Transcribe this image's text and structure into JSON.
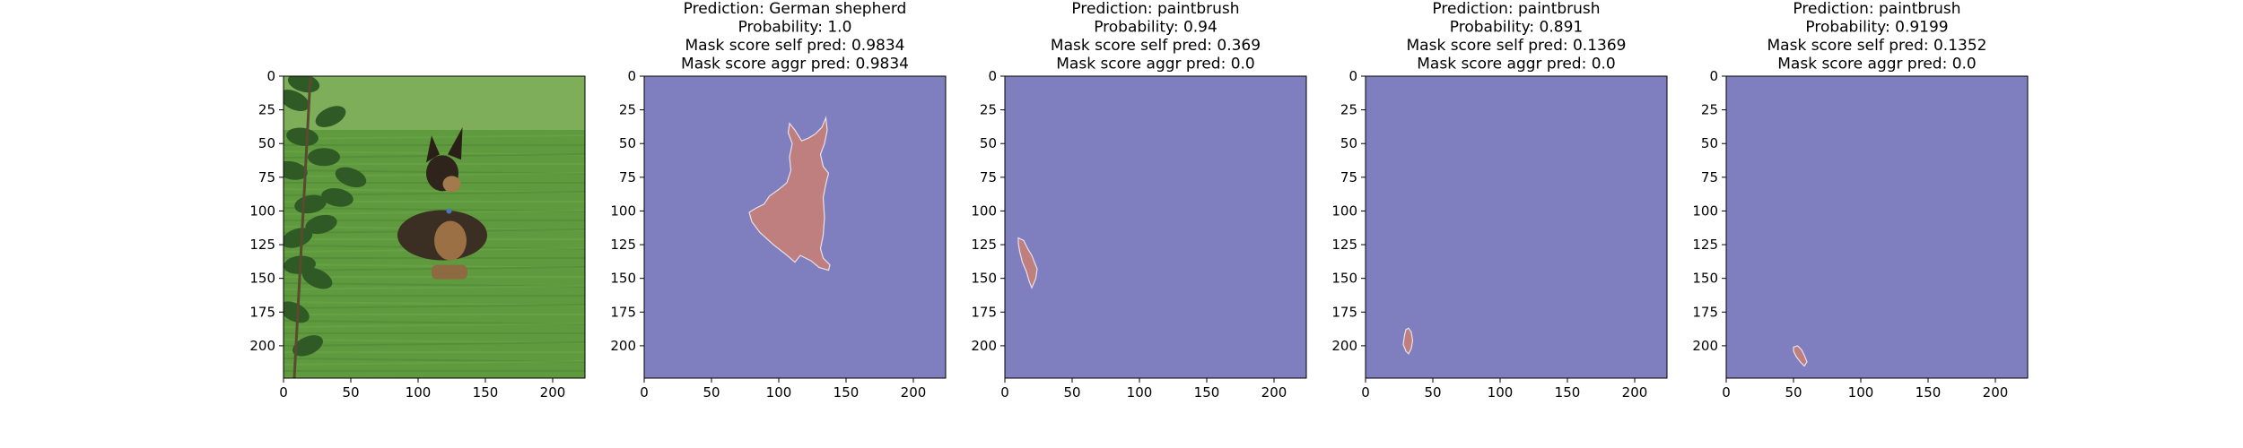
{
  "colors": {
    "background": "#7f7fbf",
    "mask": "#c07f7f",
    "mask_edge": "#e8e0e8",
    "axes": "#000000"
  },
  "chart_data": [
    {
      "type": "image",
      "title_lines": [],
      "image": "photo of a German shepherd dog lying on grass, leafy plant at left",
      "xlim": [
        0,
        224
      ],
      "ylim": [
        224,
        0
      ],
      "xticks": [
        0,
        50,
        100,
        150,
        200
      ],
      "yticks": [
        0,
        25,
        50,
        75,
        100,
        125,
        150,
        175,
        200
      ]
    },
    {
      "type": "heatmap",
      "title_lines": [
        "Prediction: German shepherd",
        "Probability: 1.0",
        "Mask score self pred: 0.9834",
        "Mask score aggr pred: 0.9834"
      ],
      "prediction": "German shepherd",
      "probability": 1.0,
      "mask_score_self_pred": 0.9834,
      "mask_score_aggr_pred": 0.9834,
      "xlim": [
        0,
        224
      ],
      "ylim": [
        224,
        0
      ],
      "xticks": [
        0,
        50,
        100,
        150,
        200
      ],
      "yticks": [
        0,
        25,
        50,
        75,
        100,
        125,
        150,
        175,
        200
      ],
      "mask_polygon": [
        [
          108,
          35
        ],
        [
          112,
          40
        ],
        [
          117,
          48
        ],
        [
          122,
          46
        ],
        [
          127,
          43
        ],
        [
          132,
          38
        ],
        [
          135,
          31
        ],
        [
          136,
          40
        ],
        [
          134,
          50
        ],
        [
          131,
          58
        ],
        [
          133,
          67
        ],
        [
          137,
          72
        ],
        [
          135,
          80
        ],
        [
          133,
          90
        ],
        [
          134,
          105
        ],
        [
          133,
          118
        ],
        [
          131,
          128
        ],
        [
          133,
          135
        ],
        [
          138,
          140
        ],
        [
          137,
          144
        ],
        [
          130,
          142
        ],
        [
          124,
          137
        ],
        [
          116,
          133
        ],
        [
          112,
          138
        ],
        [
          105,
          132
        ],
        [
          96,
          125
        ],
        [
          86,
          116
        ],
        [
          80,
          108
        ],
        [
          78,
          101
        ],
        [
          83,
          98
        ],
        [
          89,
          95
        ],
        [
          93,
          89
        ],
        [
          100,
          84
        ],
        [
          106,
          79
        ],
        [
          109,
          70
        ],
        [
          108,
          60
        ],
        [
          110,
          50
        ],
        [
          107,
          42
        ]
      ]
    },
    {
      "type": "heatmap",
      "title_lines": [
        "Prediction: paintbrush",
        "Probability: 0.94",
        "Mask score self pred: 0.369",
        "Mask score aggr pred: 0.0"
      ],
      "prediction": "paintbrush",
      "probability": 0.94,
      "mask_score_self_pred": 0.369,
      "mask_score_aggr_pred": 0.0,
      "xlim": [
        0,
        224
      ],
      "ylim": [
        224,
        0
      ],
      "xticks": [
        0,
        50,
        100,
        150,
        200
      ],
      "yticks": [
        0,
        25,
        50,
        75,
        100,
        125,
        150,
        175,
        200
      ],
      "mask_polygon": [
        [
          10,
          120
        ],
        [
          14,
          122
        ],
        [
          17,
          128
        ],
        [
          20,
          133
        ],
        [
          22,
          138
        ],
        [
          24,
          143
        ],
        [
          23,
          150
        ],
        [
          20,
          157
        ],
        [
          18,
          152
        ],
        [
          16,
          145
        ],
        [
          13,
          138
        ],
        [
          11,
          130
        ],
        [
          10,
          124
        ]
      ]
    },
    {
      "type": "heatmap",
      "title_lines": [
        "Prediction: paintbrush",
        "Probability: 0.891",
        "Mask score self pred: 0.1369",
        "Mask score aggr pred: 0.0"
      ],
      "prediction": "paintbrush",
      "probability": 0.891,
      "mask_score_self_pred": 0.1369,
      "mask_score_aggr_pred": 0.0,
      "xlim": [
        0,
        224
      ],
      "ylim": [
        224,
        0
      ],
      "xticks": [
        0,
        50,
        100,
        150,
        200
      ],
      "yticks": [
        0,
        25,
        50,
        75,
        100,
        125,
        150,
        175,
        200
      ],
      "mask_polygon": [
        [
          32,
          187
        ],
        [
          34,
          190
        ],
        [
          35,
          196
        ],
        [
          34,
          202
        ],
        [
          32,
          206
        ],
        [
          30,
          204
        ],
        [
          28,
          199
        ],
        [
          29,
          192
        ],
        [
          30,
          188
        ]
      ]
    },
    {
      "type": "heatmap",
      "title_lines": [
        "Prediction: paintbrush",
        "Probability: 0.9199",
        "Mask score self pred: 0.1352",
        "Mask score aggr pred: 0.0"
      ],
      "prediction": "paintbrush",
      "probability": 0.9199,
      "mask_score_self_pred": 0.1352,
      "mask_score_aggr_pred": 0.0,
      "xlim": [
        0,
        224
      ],
      "ylim": [
        224,
        0
      ],
      "xticks": [
        0,
        50,
        100,
        150,
        200
      ],
      "yticks": [
        0,
        25,
        50,
        75,
        100,
        125,
        150,
        175,
        200
      ],
      "mask_polygon": [
        [
          50,
          201
        ],
        [
          53,
          200
        ],
        [
          56,
          203
        ],
        [
          58,
          207
        ],
        [
          60,
          212
        ],
        [
          58,
          215
        ],
        [
          55,
          212
        ],
        [
          52,
          208
        ],
        [
          50,
          204
        ]
      ]
    }
  ]
}
